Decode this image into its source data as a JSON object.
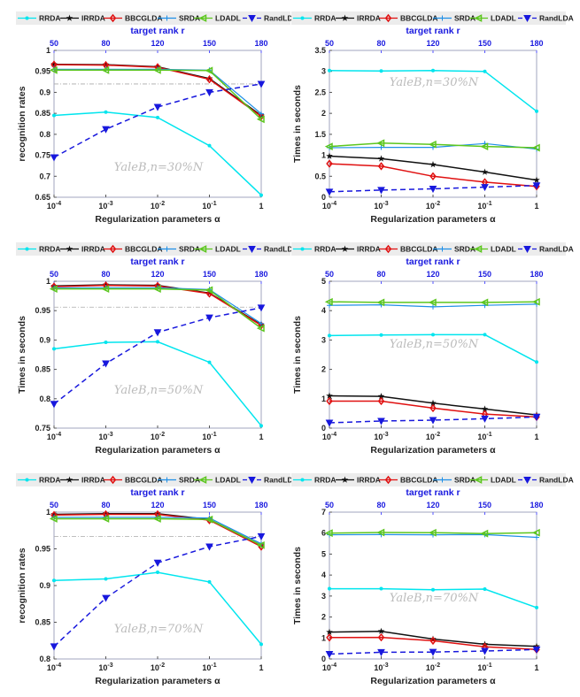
{
  "colors": {
    "RRDA": "#00e5ee",
    "IRRDA": "#111111",
    "BBCGLDA": "#e01010",
    "SRDA": "#1e8fe6",
    "LDADL": "#5cc61e",
    "RandLDA": "#1818dd",
    "reference": "#aaaaaa"
  },
  "legend": [
    "RRDA",
    "IRRDA",
    "BBCGLDA",
    "SRDA",
    "LDADL",
    "RandLDA"
  ],
  "chart_data": [
    {
      "type": "line",
      "title": "",
      "watermark": "YaleB,n=30%N",
      "xlabel": "Regularization parameters α",
      "top_xlabel": "target rank r",
      "ylabel": "recognition rates",
      "x": [
        "10^-4",
        "10^-3",
        "10^-2",
        "10^-1",
        "1"
      ],
      "top_x": [
        "50",
        "80",
        "120",
        "150",
        "180"
      ],
      "ylim": [
        0.65,
        1
      ],
      "yticks": [
        "0.65",
        "0.7",
        "0.75",
        "0.8",
        "0.85",
        "0.9",
        "0.95",
        "1"
      ],
      "reference_line": 0.92,
      "grid": false,
      "legend_position": "top",
      "series": [
        {
          "name": "RRDA",
          "values": [
            0.845,
            0.853,
            0.84,
            0.773,
            0.655
          ]
        },
        {
          "name": "IRRDA",
          "values": [
            0.967,
            0.966,
            0.961,
            0.933,
            0.845
          ]
        },
        {
          "name": "BBCGLDA",
          "values": [
            0.966,
            0.965,
            0.96,
            0.931,
            0.843
          ]
        },
        {
          "name": "SRDA",
          "values": [
            0.955,
            0.955,
            0.955,
            0.953,
            0.849
          ]
        },
        {
          "name": "LDADL",
          "values": [
            0.953,
            0.953,
            0.953,
            0.952,
            0.836
          ]
        },
        {
          "name": "RandLDA",
          "values": [
            0.745,
            0.812,
            0.865,
            0.9,
            0.92
          ]
        }
      ]
    },
    {
      "type": "line",
      "title": "",
      "watermark": "YaleB,n=30%N",
      "xlabel": "Regularization parameters α",
      "top_xlabel": "target rank r",
      "ylabel": "Times in seconds",
      "x": [
        "10^-4",
        "10^-3",
        "10^-2",
        "10^-1",
        "1"
      ],
      "top_x": [
        "50",
        "80",
        "120",
        "150",
        "180"
      ],
      "ylim": [
        0,
        3.5
      ],
      "yticks": [
        "0",
        "0.5",
        "1",
        "1.5",
        "2",
        "2.5",
        "3",
        "3.5"
      ],
      "grid": false,
      "legend_position": "top",
      "series": [
        {
          "name": "RRDA",
          "values": [
            3.02,
            3.01,
            3.02,
            3.0,
            2.05
          ]
        },
        {
          "name": "IRRDA",
          "values": [
            0.98,
            0.92,
            0.78,
            0.6,
            0.41
          ]
        },
        {
          "name": "BBCGLDA",
          "values": [
            0.8,
            0.74,
            0.5,
            0.36,
            0.26
          ]
        },
        {
          "name": "SRDA",
          "values": [
            1.18,
            1.19,
            1.19,
            1.28,
            1.15
          ]
        },
        {
          "name": "LDADL",
          "values": [
            1.21,
            1.29,
            1.26,
            1.21,
            1.18
          ]
        },
        {
          "name": "RandLDA",
          "values": [
            0.13,
            0.17,
            0.2,
            0.24,
            0.28
          ]
        }
      ]
    },
    {
      "type": "line",
      "title": "",
      "watermark": "YaleB,n=50%N",
      "xlabel": "Regularization parameters α",
      "top_xlabel": "target rank r",
      "ylabel": "Times in seconds",
      "x": [
        "10^-4",
        "10^-3",
        "10^-2",
        "10^-1",
        "1"
      ],
      "top_x": [
        "50",
        "80",
        "120",
        "150",
        "180"
      ],
      "ylim": [
        0.75,
        1
      ],
      "yticks": [
        "0.75",
        "0.8",
        "0.85",
        "0.9",
        "0.95",
        "1"
      ],
      "reference_line": 0.956,
      "grid": false,
      "legend_position": "top",
      "series": [
        {
          "name": "RRDA",
          "values": [
            0.885,
            0.896,
            0.897,
            0.862,
            0.754
          ]
        },
        {
          "name": "IRRDA",
          "values": [
            0.992,
            0.994,
            0.993,
            0.98,
            0.926
          ]
        },
        {
          "name": "BBCGLDA",
          "values": [
            0.991,
            0.993,
            0.992,
            0.979,
            0.925
          ]
        },
        {
          "name": "SRDA",
          "values": [
            0.989,
            0.989,
            0.989,
            0.986,
            0.928
          ]
        },
        {
          "name": "LDADL",
          "values": [
            0.987,
            0.987,
            0.987,
            0.985,
            0.92
          ]
        },
        {
          "name": "RandLDA",
          "values": [
            0.791,
            0.86,
            0.913,
            0.938,
            0.955
          ]
        }
      ]
    },
    {
      "type": "line",
      "title": "",
      "watermark": "YaleB,n=50%N",
      "xlabel": "Regularization parameters α",
      "top_xlabel": "target rank r",
      "ylabel": "Times in seconds",
      "x": [
        "10^-4",
        "10^-3",
        "10^-2",
        "10^-1",
        "1"
      ],
      "top_x": [
        "50",
        "80",
        "120",
        "150",
        "180"
      ],
      "ylim": [
        0,
        5
      ],
      "yticks": [
        "0",
        "1",
        "2",
        "3",
        "4",
        "5"
      ],
      "grid": false,
      "legend_position": "top",
      "series": [
        {
          "name": "RRDA",
          "values": [
            3.15,
            3.17,
            3.18,
            3.18,
            2.25
          ]
        },
        {
          "name": "IRRDA",
          "values": [
            1.1,
            1.08,
            0.85,
            0.65,
            0.45
          ]
        },
        {
          "name": "BBCGLDA",
          "values": [
            0.92,
            0.92,
            0.68,
            0.48,
            0.38
          ]
        },
        {
          "name": "SRDA",
          "values": [
            4.18,
            4.2,
            4.13,
            4.18,
            4.22
          ]
        },
        {
          "name": "LDADL",
          "values": [
            4.3,
            4.28,
            4.28,
            4.28,
            4.3
          ]
        },
        {
          "name": "RandLDA",
          "values": [
            0.18,
            0.24,
            0.27,
            0.32,
            0.38
          ]
        }
      ]
    },
    {
      "type": "line",
      "title": "",
      "watermark": "YaleB,n=70%N",
      "xlabel": "Regularization parameters α",
      "top_xlabel": "target rank r",
      "ylabel": "recognition rates",
      "x": [
        "10^-4",
        "10^-3",
        "10^-2",
        "10^-1",
        "1"
      ],
      "top_x": [
        "50",
        "80",
        "120",
        "150",
        "180"
      ],
      "ylim": [
        0.8,
        1
      ],
      "yticks": [
        "0.8",
        "0.85",
        "0.9",
        "0.95",
        "1"
      ],
      "reference_line": 0.967,
      "grid": false,
      "legend_position": "top",
      "series": [
        {
          "name": "RRDA",
          "values": [
            0.907,
            0.909,
            0.918,
            0.905,
            0.82
          ]
        },
        {
          "name": "IRRDA",
          "values": [
            0.997,
            0.998,
            0.998,
            0.99,
            0.955
          ]
        },
        {
          "name": "BBCGLDA",
          "values": [
            0.996,
            0.997,
            0.997,
            0.989,
            0.953
          ]
        },
        {
          "name": "SRDA",
          "values": [
            0.993,
            0.993,
            0.993,
            0.992,
            0.957
          ]
        },
        {
          "name": "LDADL",
          "values": [
            0.991,
            0.991,
            0.991,
            0.99,
            0.955
          ]
        },
        {
          "name": "RandLDA",
          "values": [
            0.817,
            0.883,
            0.931,
            0.953,
            0.967
          ]
        }
      ]
    },
    {
      "type": "line",
      "title": "",
      "watermark": "YaleB,n=70%N",
      "xlabel": "Regularization parameters α",
      "top_xlabel": "target rank r",
      "ylabel": "Times in seconds",
      "x": [
        "10^-4",
        "10^-3",
        "10^-2",
        "10^-1",
        "1"
      ],
      "top_x": [
        "50",
        "80",
        "120",
        "150",
        "180"
      ],
      "ylim": [
        0,
        7
      ],
      "yticks": [
        "0",
        "1",
        "2",
        "3",
        "4",
        "5",
        "6",
        "7"
      ],
      "grid": false,
      "legend_position": "top",
      "series": [
        {
          "name": "RRDA",
          "values": [
            3.35,
            3.35,
            3.3,
            3.33,
            2.45
          ]
        },
        {
          "name": "IRRDA",
          "values": [
            1.28,
            1.32,
            0.95,
            0.7,
            0.6
          ]
        },
        {
          "name": "BBCGLDA",
          "values": [
            1.02,
            1.03,
            0.87,
            0.58,
            0.45
          ]
        },
        {
          "name": "SRDA",
          "values": [
            5.92,
            5.93,
            5.92,
            5.93,
            5.8
          ]
        },
        {
          "name": "LDADL",
          "values": [
            6.0,
            6.03,
            6.02,
            5.98,
            6.02
          ]
        },
        {
          "name": "RandLDA",
          "values": [
            0.23,
            0.32,
            0.33,
            0.38,
            0.45
          ]
        }
      ]
    }
  ]
}
